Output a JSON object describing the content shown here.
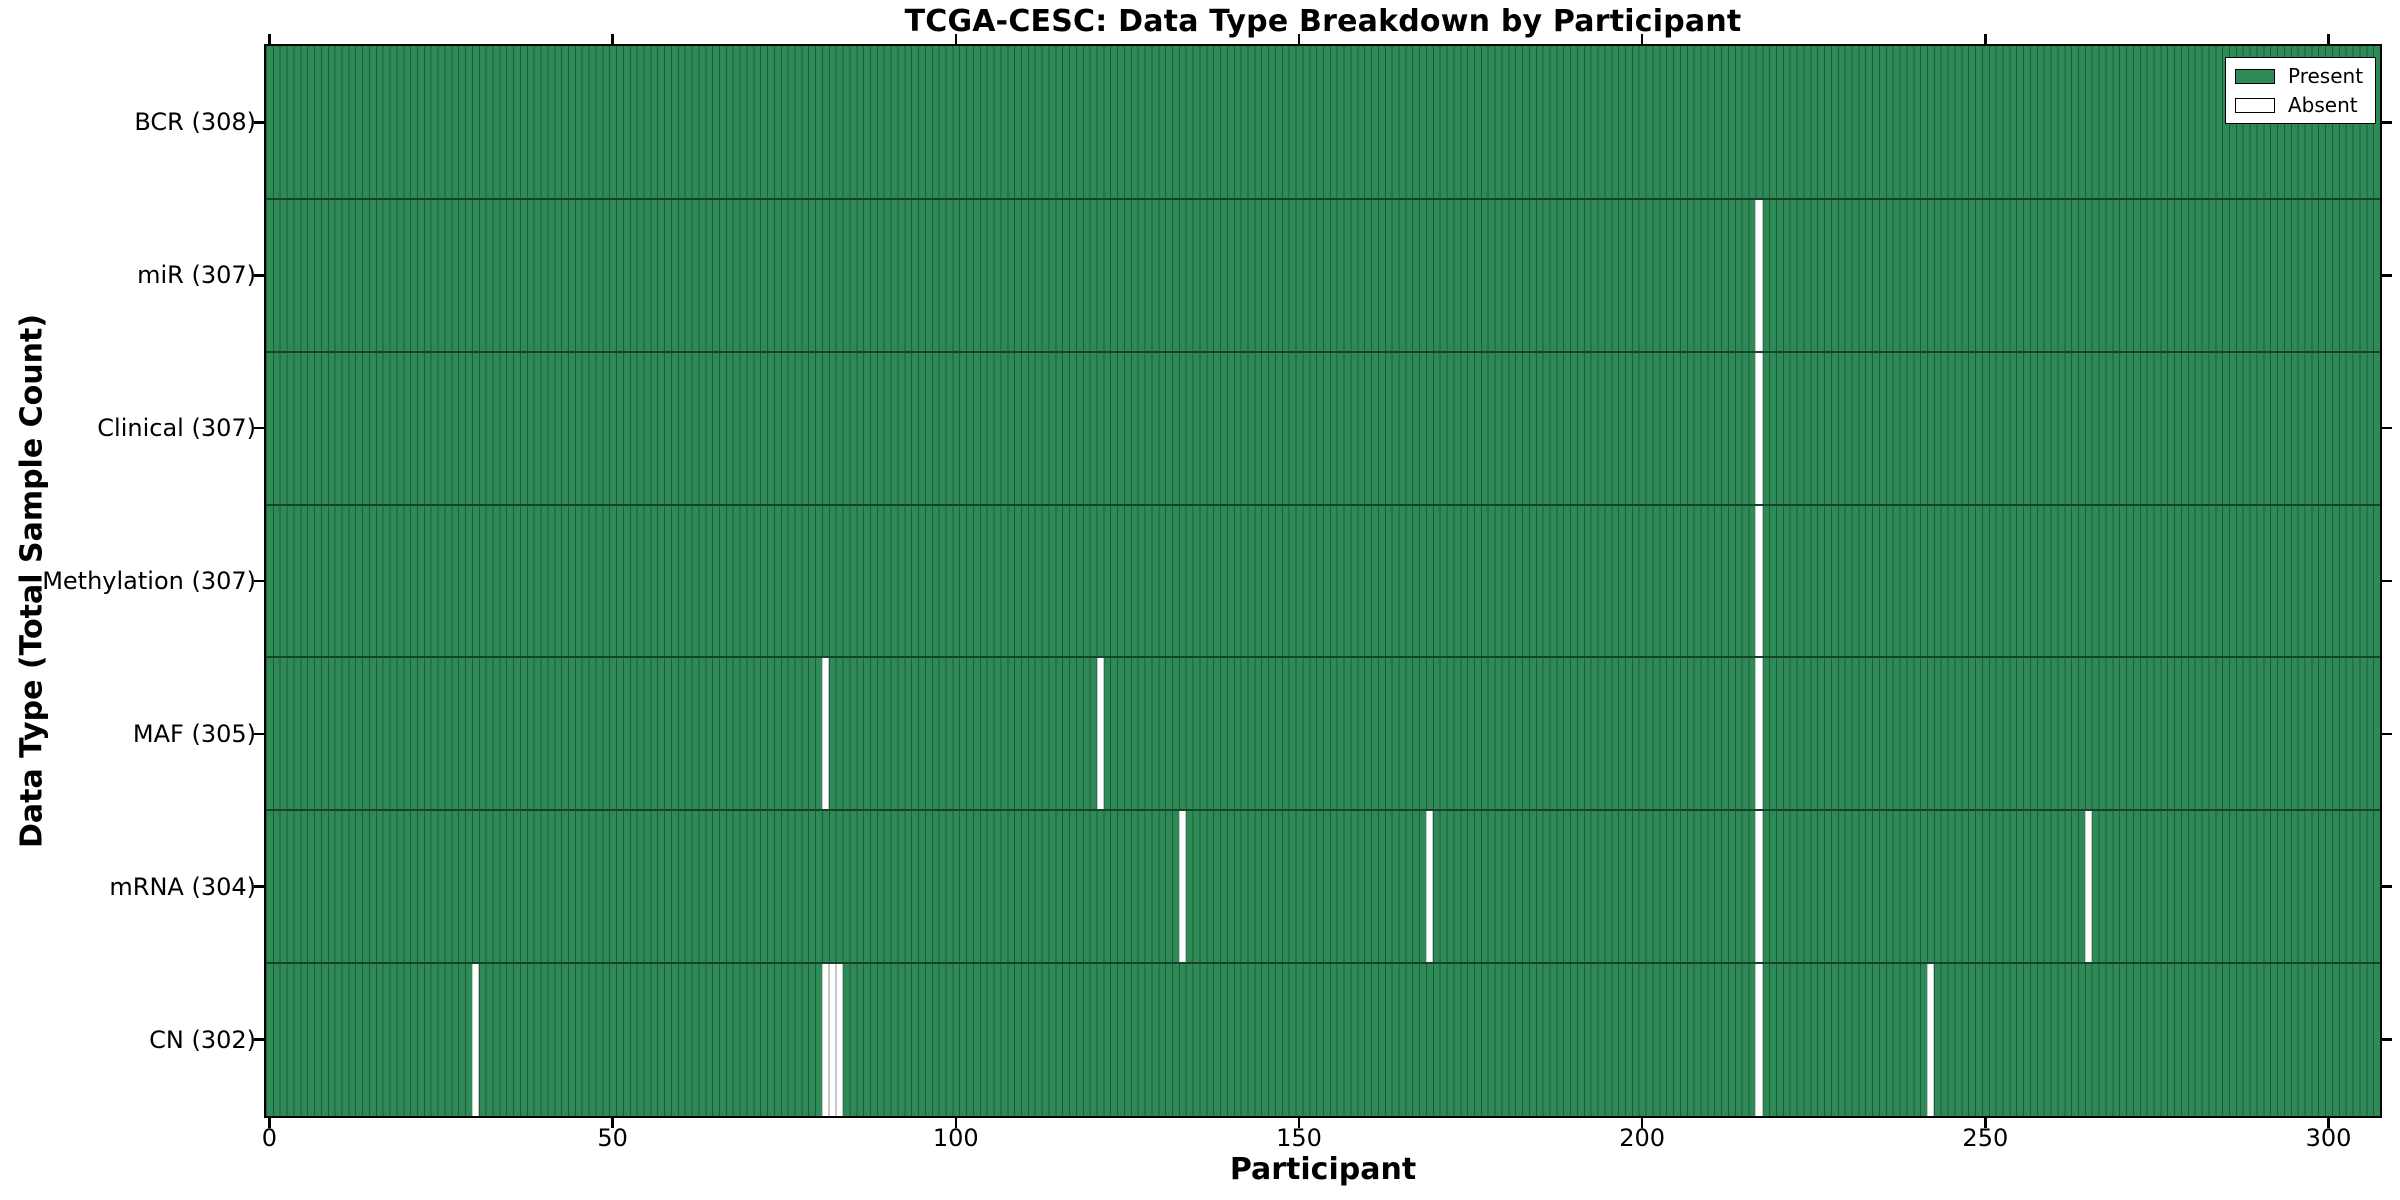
{
  "figure": {
    "title": "TCGA-CESC: Data Type Breakdown by Participant"
  },
  "chart_data": {
    "type": "heatmap",
    "title": "TCGA-CESC: Data Type Breakdown by Participant",
    "xlabel": "Participant",
    "ylabel": "Data Type (Total Sample Count)",
    "x_ticks": [
      0,
      50,
      100,
      150,
      200,
      250,
      300
    ],
    "xlim": [
      0,
      308
    ],
    "n_participants": 308,
    "grid": false,
    "legend_position": "upper right",
    "legend": [
      {
        "label": "Present",
        "color": "#2e8b57"
      },
      {
        "label": "Absent",
        "color": "#ffffff"
      }
    ],
    "rows": [
      {
        "label": "BCR (308)",
        "data_type": "BCR",
        "total_samples": 308,
        "absent_participants": []
      },
      {
        "label": "miR (307)",
        "data_type": "miR",
        "total_samples": 307,
        "absent_participants": [
          217
        ]
      },
      {
        "label": "Clinical (307)",
        "data_type": "Clinical",
        "total_samples": 307,
        "absent_participants": [
          217
        ]
      },
      {
        "label": "Methylation (307)",
        "data_type": "Methylation",
        "total_samples": 307,
        "absent_participants": [
          217
        ]
      },
      {
        "label": "MAF (305)",
        "data_type": "MAF",
        "total_samples": 305,
        "absent_participants": [
          81,
          121,
          217
        ]
      },
      {
        "label": "mRNA (304)",
        "data_type": "mRNA",
        "total_samples": 304,
        "absent_participants": [
          133,
          169,
          217,
          265
        ]
      },
      {
        "label": "CN (302)",
        "data_type": "CN",
        "total_samples": 302,
        "absent_participants": [
          30,
          81,
          82,
          83,
          217,
          242
        ]
      }
    ],
    "colors": {
      "present": "#2e8b57",
      "absent": "#ffffff",
      "bar_edge": "#1e5c39",
      "row_separator": "#17432c",
      "absent_edge": "#c8c8c8",
      "plot_border": "#000000",
      "text": "#000000"
    }
  }
}
